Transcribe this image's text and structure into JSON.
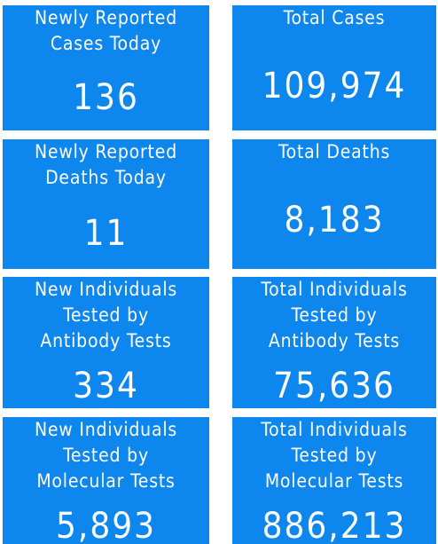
{
  "tiles": [
    {
      "label_lines": [
        "Newly Reported",
        "Cases Today"
      ],
      "value": "136"
    },
    {
      "label_lines": [
        "Total Cases"
      ],
      "value": "109,974"
    },
    {
      "label_lines": [
        "Newly Reported",
        "Deaths Today"
      ],
      "value": "11"
    },
    {
      "label_lines": [
        "Total Deaths"
      ],
      "value": "8,183"
    },
    {
      "label_lines": [
        "New Individuals",
        "Tested by",
        "Antibody Tests"
      ],
      "value": "334"
    },
    {
      "label_lines": [
        "Total Individuals",
        "Tested by",
        "Antibody Tests"
      ],
      "value": "75,636"
    },
    {
      "label_lines": [
        "New Individuals",
        "Tested by",
        "Molecular Tests"
      ],
      "value": "5,893"
    },
    {
      "label_lines": [
        "Total Individuals",
        "Tested by",
        "Molecular Tests"
      ],
      "value": "886,213"
    }
  ]
}
